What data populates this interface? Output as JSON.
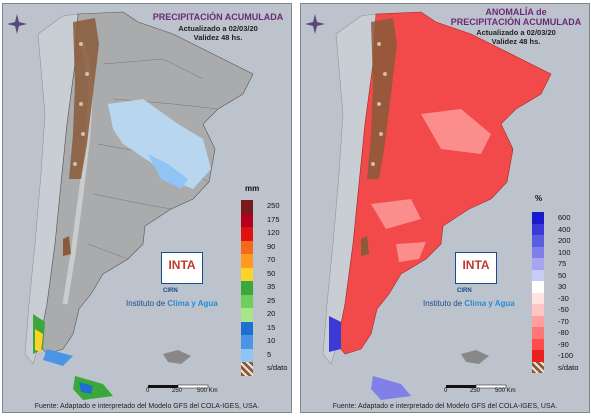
{
  "left_panel": {
    "title": "PRECIPITACIÓN ACUMULADA",
    "updated": "Actualizado a 02/03/20",
    "validity": "Validez 48 hs.",
    "legend_unit": "mm",
    "legend": [
      {
        "label": "250",
        "color": "#7a1a1a"
      },
      {
        "label": "175",
        "color": "#b3001b"
      },
      {
        "label": "120",
        "color": "#e0120f"
      },
      {
        "label": "90",
        "color": "#f56a1a"
      },
      {
        "label": "70",
        "color": "#ff9a1f"
      },
      {
        "label": "50",
        "color": "#ffd22a"
      },
      {
        "label": "35",
        "color": "#3aa83a"
      },
      {
        "label": "25",
        "color": "#6fcf5a"
      },
      {
        "label": "20",
        "color": "#a9e58a"
      },
      {
        "label": "15",
        "color": "#1f6fd0"
      },
      {
        "label": "10",
        "color": "#4a95e6"
      },
      {
        "label": "5",
        "color": "#8fc4f5"
      },
      {
        "label": "s/dato",
        "color": "#8a5a3a"
      }
    ],
    "logo": "INTA",
    "logo_sub": "CIRN",
    "institute_prefix": "Instituto de ",
    "institute_highlight": "Clima y Agua",
    "scale": [
      "0",
      "250",
      "500 Km"
    ],
    "footer": "Fuente: Adaptado e interpretado del Modelo GFS del COLA-IGES, USA."
  },
  "right_panel": {
    "title_line1": "ANOMALÍA de",
    "title_line2": "PRECIPITACIÓN ACUMULADA",
    "updated": "Actualizado a 02/03/20",
    "validity": "Validez 48 hs.",
    "legend_unit": "%",
    "legend": [
      {
        "label": "600",
        "color": "#1a1acc"
      },
      {
        "label": "400",
        "color": "#3a3ad6"
      },
      {
        "label": "200",
        "color": "#5c5ce0"
      },
      {
        "label": "100",
        "color": "#8080e8"
      },
      {
        "label": "75",
        "color": "#a6a6f0"
      },
      {
        "label": "50",
        "color": "#cacaf6"
      },
      {
        "label": "30",
        "color": "#ffffff"
      },
      {
        "label": "-30",
        "color": "#ffe3e3"
      },
      {
        "label": "-50",
        "color": "#ffc4c4"
      },
      {
        "label": "-70",
        "color": "#ff9e9e"
      },
      {
        "label": "-80",
        "color": "#ff7676"
      },
      {
        "label": "-90",
        "color": "#ff4d4d"
      },
      {
        "label": "-100",
        "color": "#e82020"
      },
      {
        "label": "s/dato",
        "color": "#8a5a3a"
      }
    ],
    "logo": "INTA",
    "logo_sub": "CIRN",
    "institute_prefix": "Instituto de ",
    "institute_highlight": "Clima y Agua",
    "scale": [
      "0",
      "250",
      "500 Km"
    ],
    "footer": "Fuente: Adaptado e interpretado del Modelo GFS del COLA-IGES, USA."
  },
  "colors": {
    "ocean": "#bcc3cc",
    "land_gray": "#b8b8b8",
    "anomaly_red": "#f24a4a",
    "light_blue": "#b9dcf5",
    "nodata_brown": "#8a5a3a"
  }
}
